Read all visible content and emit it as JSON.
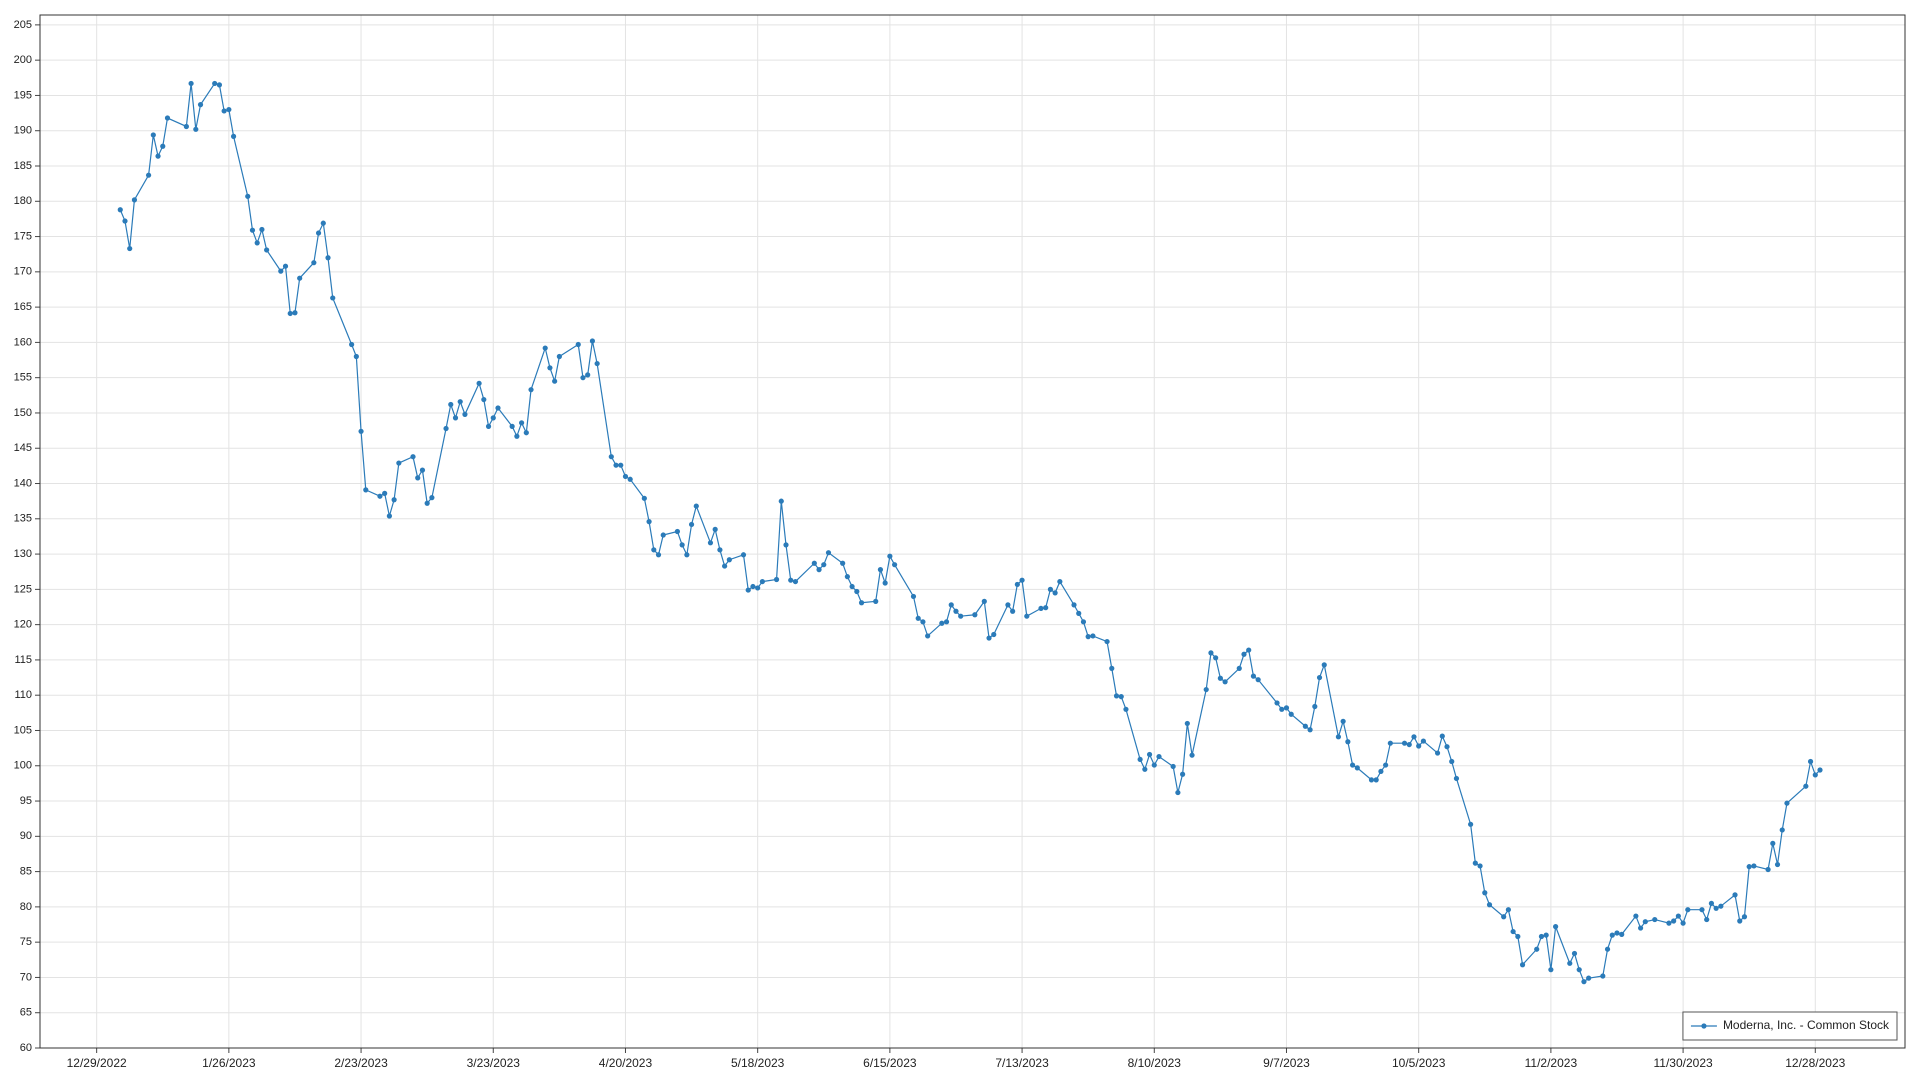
{
  "chart_data": {
    "type": "line",
    "x": [
      "1/3/2023",
      "1/4/2023",
      "1/5/2023",
      "1/6/2023",
      "1/9/2023",
      "1/10/2023",
      "1/11/2023",
      "1/12/2023",
      "1/13/2023",
      "1/17/2023",
      "1/18/2023",
      "1/19/2023",
      "1/20/2023",
      "1/23/2023",
      "1/24/2023",
      "1/25/2023",
      "1/26/2023",
      "1/27/2023",
      "1/30/2023",
      "1/31/2023",
      "2/1/2023",
      "2/2/2023",
      "2/3/2023",
      "2/6/2023",
      "2/7/2023",
      "2/8/2023",
      "2/9/2023",
      "2/10/2023",
      "2/13/2023",
      "2/14/2023",
      "2/15/2023",
      "2/16/2023",
      "2/17/2023",
      "2/21/2023",
      "2/22/2023",
      "2/23/2023",
      "2/24/2023",
      "2/27/2023",
      "2/28/2023",
      "3/1/2023",
      "3/2/2023",
      "3/3/2023",
      "3/6/2023",
      "3/7/2023",
      "3/8/2023",
      "3/9/2023",
      "3/10/2023",
      "3/13/2023",
      "3/14/2023",
      "3/15/2023",
      "3/16/2023",
      "3/17/2023",
      "3/20/2023",
      "3/21/2023",
      "3/22/2023",
      "3/23/2023",
      "3/24/2023",
      "3/27/2023",
      "3/28/2023",
      "3/29/2023",
      "3/30/2023",
      "3/31/2023",
      "4/3/2023",
      "4/4/2023",
      "4/5/2023",
      "4/6/2023",
      "4/10/2023",
      "4/11/2023",
      "4/12/2023",
      "4/13/2023",
      "4/14/2023",
      "4/17/2023",
      "4/18/2023",
      "4/19/2023",
      "4/20/2023",
      "4/21/2023",
      "4/24/2023",
      "4/25/2023",
      "4/26/2023",
      "4/27/2023",
      "4/28/2023",
      "5/1/2023",
      "5/2/2023",
      "5/3/2023",
      "5/4/2023",
      "5/5/2023",
      "5/8/2023",
      "5/9/2023",
      "5/10/2023",
      "5/11/2023",
      "5/12/2023",
      "5/15/2023",
      "5/16/2023",
      "5/17/2023",
      "5/18/2023",
      "5/19/2023",
      "5/22/2023",
      "5/23/2023",
      "5/24/2023",
      "5/25/2023",
      "5/26/2023",
      "5/30/2023",
      "5/31/2023",
      "6/1/2023",
      "6/2/2023",
      "6/5/2023",
      "6/6/2023",
      "6/7/2023",
      "6/8/2023",
      "6/9/2023",
      "6/12/2023",
      "6/13/2023",
      "6/14/2023",
      "6/15/2023",
      "6/16/2023",
      "6/20/2023",
      "6/21/2023",
      "6/22/2023",
      "6/23/2023",
      "6/26/2023",
      "6/27/2023",
      "6/28/2023",
      "6/29/2023",
      "6/30/2023",
      "7/3/2023",
      "7/5/2023",
      "7/6/2023",
      "7/7/2023",
      "7/10/2023",
      "7/11/2023",
      "7/12/2023",
      "7/13/2023",
      "7/14/2023",
      "7/17/2023",
      "7/18/2023",
      "7/19/2023",
      "7/20/2023",
      "7/21/2023",
      "7/24/2023",
      "7/25/2023",
      "7/26/2023",
      "7/27/2023",
      "7/28/2023",
      "7/31/2023",
      "8/1/2023",
      "8/2/2023",
      "8/3/2023",
      "8/4/2023",
      "8/7/2023",
      "8/8/2023",
      "8/9/2023",
      "8/10/2023",
      "8/11/2023",
      "8/14/2023",
      "8/15/2023",
      "8/16/2023",
      "8/17/2023",
      "8/18/2023",
      "8/21/2023",
      "8/22/2023",
      "8/23/2023",
      "8/24/2023",
      "8/25/2023",
      "8/28/2023",
      "8/29/2023",
      "8/30/2023",
      "8/31/2023",
      "9/1/2023",
      "9/5/2023",
      "9/6/2023",
      "9/7/2023",
      "9/8/2023",
      "9/11/2023",
      "9/12/2023",
      "9/13/2023",
      "9/14/2023",
      "9/15/2023",
      "9/18/2023",
      "9/19/2023",
      "9/20/2023",
      "9/21/2023",
      "9/22/2023",
      "9/25/2023",
      "9/26/2023",
      "9/27/2023",
      "9/28/2023",
      "9/29/2023",
      "10/2/2023",
      "10/3/2023",
      "10/4/2023",
      "10/5/2023",
      "10/6/2023",
      "10/9/2023",
      "10/10/2023",
      "10/11/2023",
      "10/12/2023",
      "10/13/2023",
      "10/16/2023",
      "10/17/2023",
      "10/18/2023",
      "10/19/2023",
      "10/20/2023",
      "10/23/2023",
      "10/24/2023",
      "10/25/2023",
      "10/26/2023",
      "10/27/2023",
      "10/30/2023",
      "10/31/2023",
      "11/1/2023",
      "11/2/2023",
      "11/3/2023",
      "11/6/2023",
      "11/7/2023",
      "11/8/2023",
      "11/9/2023",
      "11/10/2023",
      "11/13/2023",
      "11/14/2023",
      "11/15/2023",
      "11/16/2023",
      "11/17/2023",
      "11/20/2023",
      "11/21/2023",
      "11/22/2023",
      "11/24/2023",
      "11/27/2023",
      "11/28/2023",
      "11/29/2023",
      "11/30/2023",
      "12/1/2023",
      "12/4/2023",
      "12/5/2023",
      "12/6/2023",
      "12/7/2023",
      "12/8/2023",
      "12/11/2023",
      "12/12/2023",
      "12/13/2023",
      "12/14/2023",
      "12/15/2023",
      "12/18/2023",
      "12/19/2023",
      "12/20/2023",
      "12/21/2023",
      "12/22/2023",
      "12/26/2023",
      "12/27/2023",
      "12/28/2023",
      "12/29/2023"
    ],
    "series": [
      {
        "name": "Moderna, Inc. - Common Stock",
        "color": "#2b7bb9",
        "values": [
          178.8,
          177.2,
          173.3,
          180.2,
          183.7,
          189.4,
          186.4,
          187.8,
          191.8,
          190.6,
          196.7,
          190.2,
          193.7,
          196.7,
          196.5,
          192.8,
          193.0,
          189.2,
          180.7,
          175.9,
          174.1,
          176.0,
          173.1,
          170.1,
          170.8,
          164.1,
          164.2,
          169.1,
          171.3,
          175.5,
          176.9,
          172.0,
          166.3,
          159.7,
          158.0,
          147.4,
          139.1,
          138.2,
          138.6,
          135.4,
          137.7,
          142.9,
          143.8,
          140.8,
          141.9,
          137.2,
          138.0,
          147.8,
          151.2,
          149.3,
          151.6,
          149.8,
          154.2,
          151.9,
          148.1,
          149.3,
          150.7,
          148.1,
          146.7,
          148.6,
          147.2,
          153.3,
          159.2,
          156.4,
          154.5,
          158.0,
          159.7,
          155.0,
          155.4,
          160.2,
          157.0,
          143.8,
          142.6,
          142.6,
          141.0,
          140.6,
          137.9,
          134.6,
          130.6,
          129.9,
          132.7,
          133.2,
          131.3,
          129.9,
          134.2,
          136.8,
          131.6,
          133.5,
          130.6,
          128.3,
          129.2,
          129.9,
          124.9,
          125.4,
          125.2,
          126.1,
          126.4,
          137.5,
          131.3,
          126.3,
          126.1,
          128.7,
          127.8,
          128.5,
          130.2,
          128.7,
          126.8,
          125.4,
          124.7,
          123.1,
          123.3,
          127.8,
          125.9,
          129.7,
          128.5,
          124.0,
          120.9,
          120.4,
          118.4,
          120.2,
          120.4,
          122.8,
          121.9,
          121.2,
          121.4,
          123.3,
          118.1,
          118.6,
          122.8,
          121.9,
          125.7,
          126.3,
          121.2,
          122.3,
          122.4,
          125.0,
          124.5,
          126.1,
          122.8,
          121.6,
          120.4,
          118.3,
          118.4,
          117.6,
          113.8,
          109.9,
          109.8,
          108.0,
          100.9,
          99.5,
          101.6,
          100.1,
          101.3,
          99.9,
          96.2,
          98.8,
          106.0,
          101.5,
          110.8,
          116.0,
          115.3,
          112.4,
          111.9,
          113.8,
          115.8,
          116.4,
          112.7,
          112.2,
          108.9,
          108.0,
          108.2,
          107.3,
          105.6,
          105.1,
          108.4,
          112.5,
          114.3,
          104.1,
          106.3,
          103.4,
          100.1,
          99.7,
          98.0,
          98.0,
          99.2,
          100.1,
          103.2,
          103.2,
          103.0,
          104.1,
          102.8,
          103.5,
          101.8,
          104.2,
          102.7,
          100.6,
          98.2,
          91.7,
          86.2,
          85.8,
          82.0,
          80.3,
          78.6,
          79.6,
          76.5,
          75.8,
          71.8,
          74.0,
          75.8,
          76.0,
          71.1,
          77.2,
          72.0,
          73.4,
          71.1,
          69.4,
          69.9,
          70.2,
          74.0,
          76.0,
          76.3,
          76.1,
          78.7,
          77.0,
          77.9,
          78.2,
          77.7,
          78.0,
          78.7,
          77.7,
          79.6,
          79.6,
          78.2,
          80.5,
          79.8,
          80.1,
          81.7,
          78.0,
          78.6,
          85.7,
          85.8,
          85.3,
          89.0,
          86.0,
          90.9,
          94.7,
          97.1,
          100.6,
          98.7,
          99.4
        ]
      }
    ],
    "xlim": [
      "12/17/2022",
      "1/16/2024"
    ],
    "xticks": [
      "12/29/2022",
      "1/26/2023",
      "2/23/2023",
      "3/23/2023",
      "4/20/2023",
      "5/18/2023",
      "6/15/2023",
      "7/13/2023",
      "8/10/2023",
      "9/7/2023",
      "10/5/2023",
      "11/2/2023",
      "11/30/2023",
      "12/28/2023"
    ],
    "ylim": [
      60,
      206.4
    ],
    "yticks": [
      60,
      65,
      70,
      75,
      80,
      85,
      90,
      95,
      100,
      105,
      110,
      115,
      120,
      125,
      130,
      135,
      140,
      145,
      150,
      155,
      160,
      165,
      170,
      175,
      180,
      185,
      190,
      195,
      200,
      205
    ],
    "grid": true,
    "legend": "lower right"
  }
}
